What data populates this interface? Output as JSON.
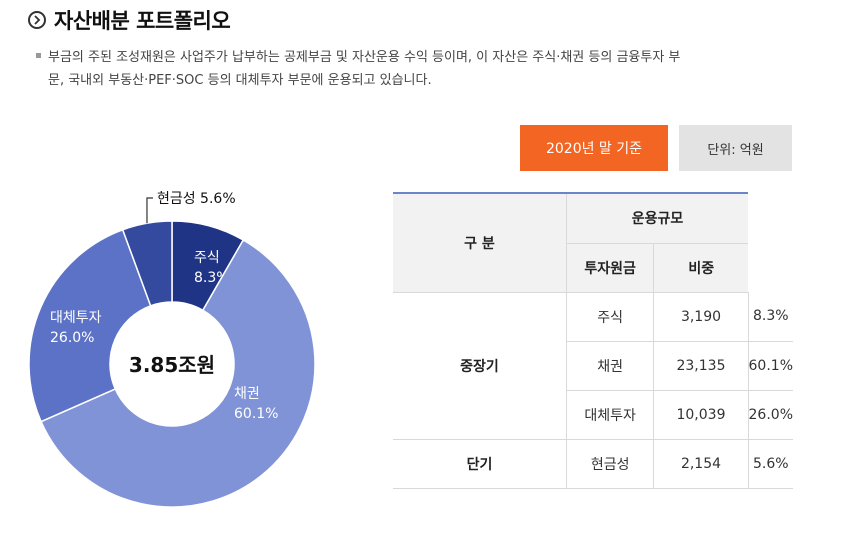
{
  "header": {
    "title": "자산배분 포트폴리오",
    "icon": "chevron-right-icon"
  },
  "description": {
    "line1": "부금의 주된 조성재원은 사업주가 납부하는 공제부금 및 자산운용 수익 등이며, 이 자산은 주식·채권 등의 금융투자 부",
    "line2": "문, 국내외 부동산·PEF·SOC 등의 대체투자 부문에 운용되고 있습니다."
  },
  "controls": {
    "year_label": "2020년 말 기준",
    "unit_label": "단위: 억원"
  },
  "colors": {
    "accent": "#f26522",
    "table_rule": "#6a86c8"
  },
  "chart_data": {
    "type": "pie",
    "center_label": "3.85조원",
    "slices": [
      {
        "name": "주식",
        "value": 8.3,
        "label": "8.3%",
        "color": "#1f3485"
      },
      {
        "name": "채권",
        "value": 60.1,
        "label": "60.1%",
        "color": "#8093d6"
      },
      {
        "name": "대체투자",
        "value": 26.0,
        "label": "26.0%",
        "color": "#5b72c6"
      },
      {
        "name": "현금성",
        "value": 5.6,
        "label": "5.6%",
        "color": "#344a9e"
      }
    ]
  },
  "table": {
    "header_group": "구 분",
    "header_scale": "운용규모",
    "header_principal": "투자원금",
    "header_ratio": "비중",
    "group_long": "중장기",
    "group_short": "단기",
    "rows": [
      {
        "asset": "주식",
        "principal": "3,190",
        "ratio": "8.3%"
      },
      {
        "asset": "채권",
        "principal": "23,135",
        "ratio": "60.1%"
      },
      {
        "asset": "대체투자",
        "principal": "10,039",
        "ratio": "26.0%"
      },
      {
        "asset": "현금성",
        "principal": "2,154",
        "ratio": "5.6%"
      }
    ]
  }
}
